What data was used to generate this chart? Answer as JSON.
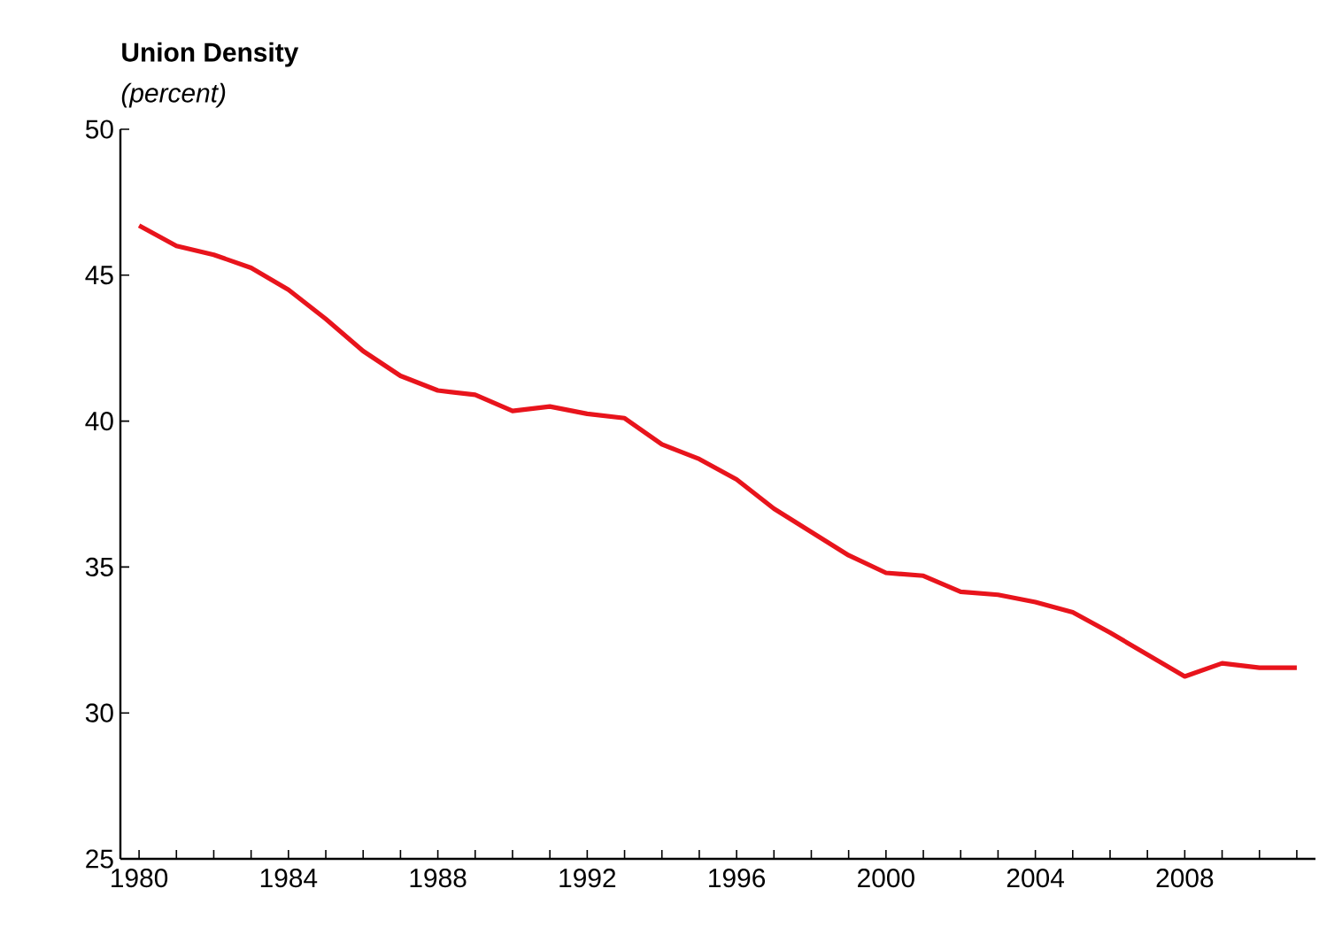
{
  "chart_data": {
    "type": "line",
    "title": "Union Density",
    "subtitle": "(percent)",
    "x": [
      1980,
      1981,
      1982,
      1983,
      1984,
      1985,
      1986,
      1987,
      1988,
      1989,
      1990,
      1991,
      1992,
      1993,
      1994,
      1995,
      1996,
      1997,
      1998,
      1999,
      2000,
      2001,
      2002,
      2003,
      2004,
      2005,
      2006,
      2007,
      2008,
      2009,
      2010,
      2011
    ],
    "series": [
      {
        "color": "#e8141c",
        "values": [
          46.7,
          46.0,
          45.7,
          45.25,
          44.5,
          43.5,
          42.4,
          41.55,
          41.05,
          40.9,
          40.35,
          40.5,
          40.25,
          40.1,
          39.2,
          38.7,
          38.0,
          37.0,
          36.2,
          35.4,
          34.8,
          34.7,
          34.15,
          34.05,
          33.8,
          33.45,
          32.75,
          32.0,
          31.25,
          31.7,
          31.55,
          31.55
        ]
      }
    ],
    "xlim": [
      1979.5,
      2011.5
    ],
    "xticks": [
      1980,
      {
        "value": 1981,
        "label": null
      },
      {
        "value": 1982,
        "label": null
      },
      {
        "value": 1983,
        "label": null
      },
      1984,
      {
        "value": 1985,
        "label": null
      },
      {
        "value": 1986,
        "label": null
      },
      {
        "value": 1987,
        "label": null
      },
      1988,
      {
        "value": 1989,
        "label": null
      },
      {
        "value": 1990,
        "label": null
      },
      {
        "value": 1991,
        "label": null
      },
      1992,
      {
        "value": 1993,
        "label": null
      },
      {
        "value": 1994,
        "label": null
      },
      {
        "value": 1995,
        "label": null
      },
      1996,
      {
        "value": 1997,
        "label": null
      },
      {
        "value": 1998,
        "label": null
      },
      {
        "value": 1999,
        "label": null
      },
      2000,
      {
        "value": 2001,
        "label": null
      },
      {
        "value": 2002,
        "label": null
      },
      {
        "value": 2003,
        "label": null
      },
      2004,
      {
        "value": 2005,
        "label": null
      },
      {
        "value": 2006,
        "label": null
      },
      {
        "value": 2007,
        "label": null
      },
      2008,
      {
        "value": 2009,
        "label": null
      },
      {
        "value": 2010,
        "label": null
      },
      {
        "value": 2011,
        "label": null
      }
    ],
    "ylim": [
      25,
      50
    ],
    "yticks": [
      25,
      30,
      35,
      40,
      45,
      50
    ],
    "grid": false,
    "marker": "none",
    "line_style": "solid"
  }
}
